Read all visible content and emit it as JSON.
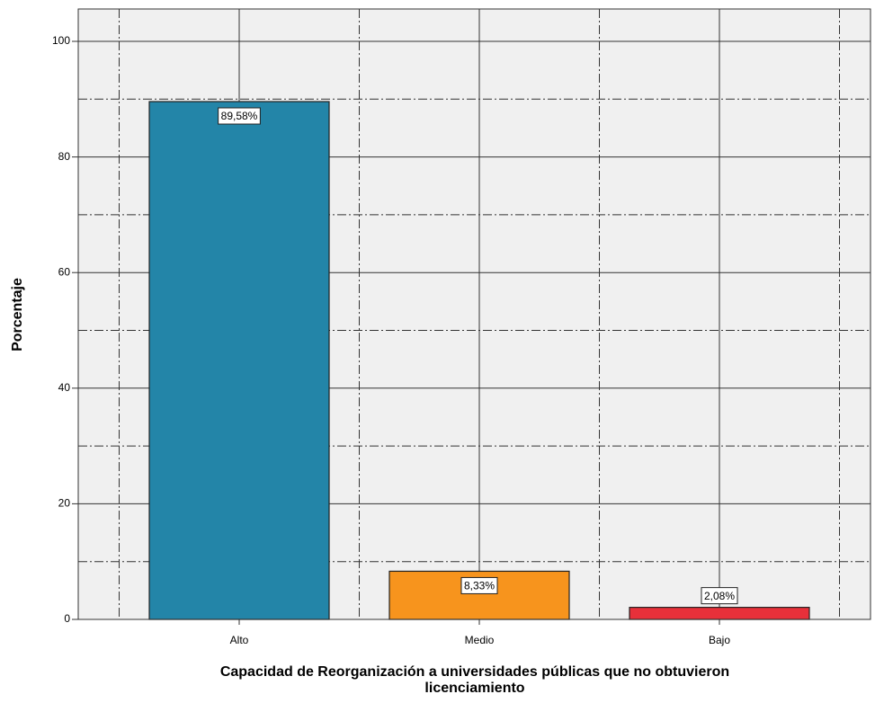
{
  "chart_data": {
    "type": "bar",
    "categories": [
      "Alto",
      "Medio",
      "Bajo"
    ],
    "values": [
      89.58,
      8.33,
      2.08
    ],
    "value_labels": [
      "89,58%",
      "8,33%",
      "2,08%"
    ],
    "colors": [
      "#2385a8",
      "#f7941d",
      "#e8303a"
    ],
    "ylabel": "Porcentaje",
    "xlabel": [
      "Capacidad de Reorganización a universidades públicas que no obtuvieron",
      "licenciamiento"
    ],
    "ylim": [
      0,
      105.6
    ],
    "yticks": [
      0,
      20,
      40,
      60,
      80,
      100
    ],
    "minor_yticks": [
      10,
      30,
      50,
      70,
      90
    ],
    "grid": true
  }
}
